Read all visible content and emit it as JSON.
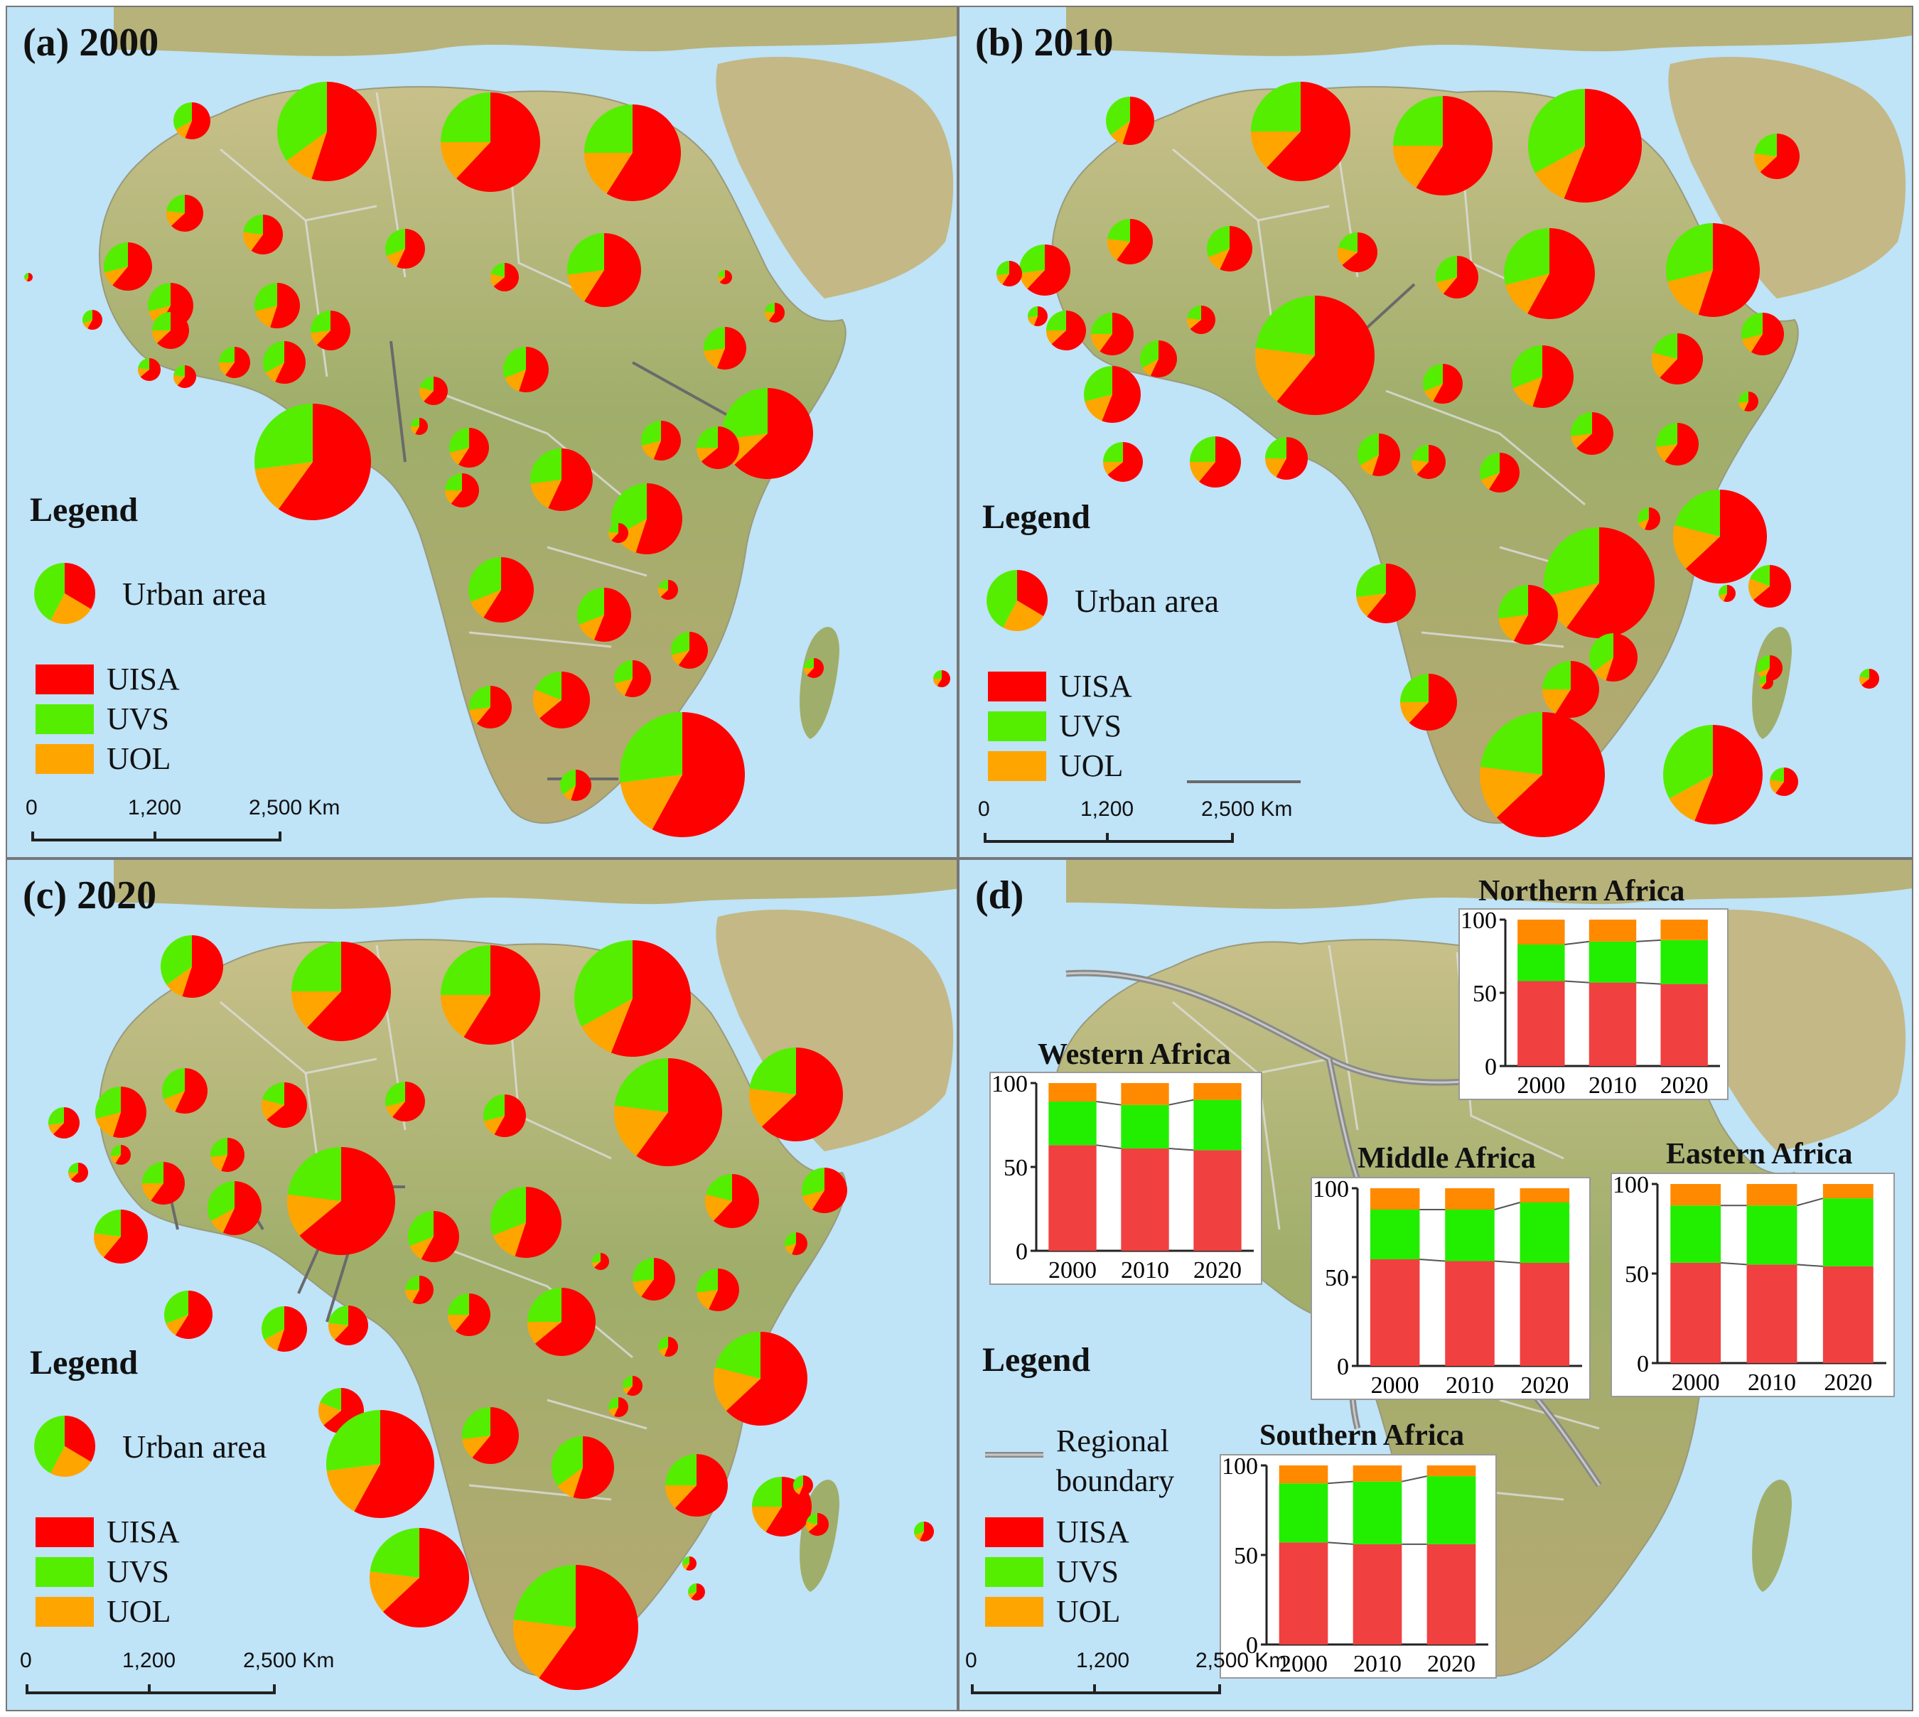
{
  "panels": [
    {
      "id": "a",
      "title": "(a) 2000"
    },
    {
      "id": "b",
      "title": "(b) 2010"
    },
    {
      "id": "c",
      "title": "(c) 2020"
    },
    {
      "id": "d",
      "title": "(d)"
    }
  ],
  "legend": {
    "title": "Legend",
    "urban_area": "Urban area",
    "regional_boundary": "Regional boundary",
    "items": [
      {
        "label": "UISA",
        "color": "#ff0000"
      },
      {
        "label": "UVS",
        "color": "#55ee00"
      },
      {
        "label": "UOL",
        "color": "#ffa500"
      }
    ]
  },
  "scalebar": {
    "ticks": [
      "0",
      "1,200",
      "2,500 Km"
    ]
  },
  "map_colors": {
    "ocean": "#bfe3f7",
    "land": "#c9c08a",
    "land_dark": "#a8a86a",
    "boundary": "#dddddd",
    "leader": "#6a6a6a"
  },
  "chart_data": [
    {
      "type": "bar",
      "stacked": true,
      "title": "Northern Africa",
      "categories": [
        "2000",
        "2010",
        "2020"
      ],
      "series": [
        {
          "name": "UISA",
          "values": [
            58,
            57,
            56
          ]
        },
        {
          "name": "UVS",
          "values": [
            25,
            28,
            30
          ]
        },
        {
          "name": "UOL",
          "values": [
            17,
            15,
            14
          ]
        }
      ],
      "yticks": [
        0,
        50,
        100
      ],
      "ylim": [
        0,
        100
      ]
    },
    {
      "type": "bar",
      "stacked": true,
      "title": "Western Africa",
      "categories": [
        "2000",
        "2010",
        "2020"
      ],
      "series": [
        {
          "name": "UISA",
          "values": [
            63,
            61,
            60
          ]
        },
        {
          "name": "UVS",
          "values": [
            26,
            26,
            30
          ]
        },
        {
          "name": "UOL",
          "values": [
            11,
            13,
            10
          ]
        }
      ],
      "yticks": [
        0,
        50,
        100
      ],
      "ylim": [
        0,
        100
      ]
    },
    {
      "type": "bar",
      "stacked": true,
      "title": "Middle Africa",
      "categories": [
        "2000",
        "2010",
        "2020"
      ],
      "series": [
        {
          "name": "UISA",
          "values": [
            60,
            59,
            58
          ]
        },
        {
          "name": "UVS",
          "values": [
            28,
            29,
            34
          ]
        },
        {
          "name": "UOL",
          "values": [
            12,
            12,
            8
          ]
        }
      ],
      "yticks": [
        0,
        50,
        100
      ],
      "ylim": [
        0,
        100
      ]
    },
    {
      "type": "bar",
      "stacked": true,
      "title": "Eastern Africa",
      "categories": [
        "2000",
        "2010",
        "2020"
      ],
      "series": [
        {
          "name": "UISA",
          "values": [
            56,
            55,
            54
          ]
        },
        {
          "name": "UVS",
          "values": [
            32,
            33,
            38
          ]
        },
        {
          "name": "UOL",
          "values": [
            12,
            12,
            8
          ]
        }
      ],
      "yticks": [
        0,
        50,
        100
      ],
      "ylim": [
        0,
        100
      ]
    },
    {
      "type": "bar",
      "stacked": true,
      "title": "Southern Africa",
      "categories": [
        "2000",
        "2010",
        "2020"
      ],
      "series": [
        {
          "name": "UISA",
          "values": [
            57,
            56,
            56
          ]
        },
        {
          "name": "UVS",
          "values": [
            33,
            35,
            38
          ]
        },
        {
          "name": "UOL",
          "values": [
            10,
            9,
            6
          ]
        }
      ],
      "yticks": [
        0,
        50,
        100
      ],
      "ylim": [
        0,
        100
      ]
    }
  ]
}
